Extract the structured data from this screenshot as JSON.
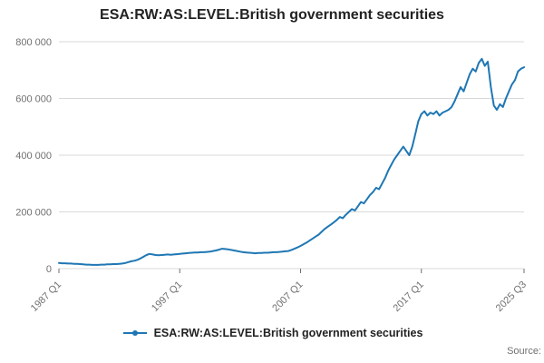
{
  "title": "ESA:RW:AS:LEVEL:British government securities",
  "legend": {
    "label": "ESA:RW:AS:LEVEL:British government securities"
  },
  "source_label": "Source:",
  "colors": {
    "line": "#1f77b4",
    "grid": "#d9d9d9",
    "axis_text": "#707070",
    "title_text": "#222222"
  },
  "chart_data": {
    "type": "line",
    "title": "ESA:RW:AS:LEVEL:British government securities",
    "xlabel": "",
    "ylabel": "",
    "x_unit": "quarter",
    "x_start": "1987 Q1",
    "x_end": "2025 Q3",
    "x_tick_labels": [
      "1987 Q1",
      "1997 Q1",
      "2007 Q1",
      "2017 Q1",
      "2025 Q3"
    ],
    "x_tick_indices": [
      0,
      40,
      80,
      120,
      154
    ],
    "ylim": [
      0,
      800000
    ],
    "y_ticks": [
      0,
      200000,
      400000,
      600000,
      800000
    ],
    "y_tick_labels": [
      "0",
      "200 000",
      "400 000",
      "600 000",
      "800 000"
    ],
    "grid": "horizontal",
    "legend_position": "bottom-center",
    "series": [
      {
        "name": "ESA:RW:AS:LEVEL:British government securities",
        "values": [
          20000,
          19000,
          19000,
          18000,
          18000,
          17000,
          17000,
          16000,
          15000,
          14000,
          14000,
          13000,
          13000,
          13000,
          14000,
          14000,
          15000,
          15000,
          16000,
          16000,
          17000,
          18000,
          20000,
          23000,
          26000,
          28000,
          31000,
          36000,
          42000,
          48000,
          52000,
          50000,
          48000,
          47000,
          48000,
          49000,
          50000,
          49000,
          50000,
          51000,
          52000,
          53000,
          54000,
          55000,
          56000,
          57000,
          57000,
          58000,
          58000,
          59000,
          60000,
          62000,
          64000,
          67000,
          70000,
          69000,
          68000,
          66000,
          64000,
          62000,
          60000,
          58000,
          57000,
          56000,
          55000,
          54000,
          55000,
          55000,
          56000,
          56000,
          57000,
          58000,
          58000,
          59000,
          60000,
          61000,
          62000,
          66000,
          70000,
          75000,
          80000,
          86000,
          92000,
          99000,
          106000,
          113000,
          120000,
          130000,
          140000,
          148000,
          155000,
          163000,
          172000,
          182000,
          178000,
          190000,
          200000,
          210000,
          205000,
          220000,
          235000,
          230000,
          245000,
          260000,
          270000,
          285000,
          280000,
          300000,
          320000,
          345000,
          365000,
          385000,
          400000,
          415000,
          430000,
          415000,
          400000,
          430000,
          475000,
          520000,
          545000,
          555000,
          540000,
          550000,
          545000,
          555000,
          540000,
          550000,
          555000,
          560000,
          570000,
          590000,
          615000,
          640000,
          625000,
          655000,
          685000,
          705000,
          695000,
          725000,
          740000,
          715000,
          730000,
          640000,
          575000,
          560000,
          580000,
          570000,
          600000,
          625000,
          650000,
          665000,
          695000,
          705000,
          710000
        ]
      }
    ]
  }
}
